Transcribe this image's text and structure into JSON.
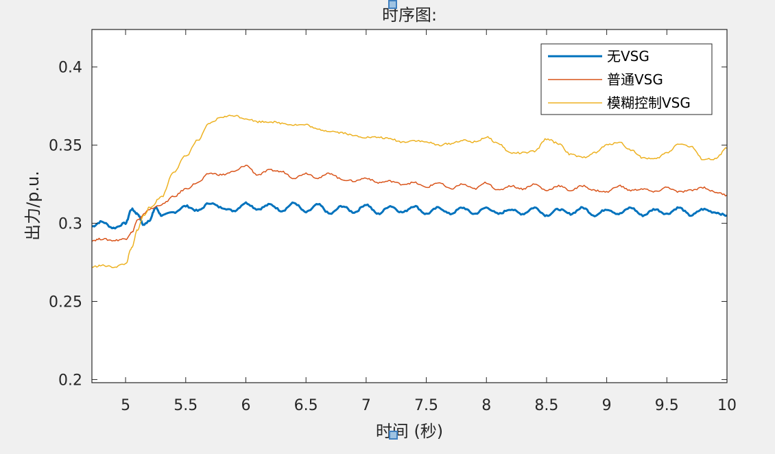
{
  "chart_data": {
    "type": "line",
    "title": "时序图:",
    "xlabel": "时间 (秒)",
    "ylabel": "出力/p.u.",
    "xlim": [
      4.72,
      10.0
    ],
    "ylim": [
      0.198,
      0.424
    ],
    "xticks": [
      5,
      5.5,
      6,
      6.5,
      7,
      7.5,
      8,
      8.5,
      9,
      9.5,
      10
    ],
    "xtick_labels": [
      "5",
      "5.5",
      "6",
      "6.5",
      "7",
      "7.5",
      "8",
      "8.5",
      "9",
      "9.5",
      "10"
    ],
    "yticks": [
      0.2,
      0.25,
      0.3,
      0.35,
      0.4
    ],
    "ytick_labels": [
      "0.2",
      "0.25",
      "0.3",
      "0.35",
      "0.4"
    ],
    "grid": false,
    "legend_position": "top-right",
    "series": [
      {
        "name": "无VSG",
        "color": "#0072bd",
        "line_width": 3,
        "points": [
          [
            4.72,
            0.298
          ],
          [
            4.8,
            0.301
          ],
          [
            4.9,
            0.297
          ],
          [
            5.0,
            0.3
          ],
          [
            5.05,
            0.309
          ],
          [
            5.1,
            0.306
          ],
          [
            5.15,
            0.299
          ],
          [
            5.2,
            0.302
          ],
          [
            5.25,
            0.31
          ],
          [
            5.3,
            0.305
          ],
          [
            5.4,
            0.307
          ],
          [
            5.5,
            0.311
          ],
          [
            5.6,
            0.308
          ],
          [
            5.7,
            0.313
          ],
          [
            5.8,
            0.31
          ],
          [
            5.9,
            0.308
          ],
          [
            6.0,
            0.313
          ],
          [
            6.1,
            0.309
          ],
          [
            6.2,
            0.312
          ],
          [
            6.3,
            0.308
          ],
          [
            6.4,
            0.313
          ],
          [
            6.5,
            0.307
          ],
          [
            6.6,
            0.312
          ],
          [
            6.7,
            0.306
          ],
          [
            6.8,
            0.311
          ],
          [
            6.9,
            0.307
          ],
          [
            7.0,
            0.312
          ],
          [
            7.1,
            0.306
          ],
          [
            7.2,
            0.311
          ],
          [
            7.3,
            0.307
          ],
          [
            7.4,
            0.311
          ],
          [
            7.5,
            0.306
          ],
          [
            7.6,
            0.31
          ],
          [
            7.7,
            0.306
          ],
          [
            7.8,
            0.31
          ],
          [
            7.9,
            0.306
          ],
          [
            8.0,
            0.31
          ],
          [
            8.1,
            0.306
          ],
          [
            8.2,
            0.309
          ],
          [
            8.3,
            0.306
          ],
          [
            8.4,
            0.31
          ],
          [
            8.5,
            0.305
          ],
          [
            8.6,
            0.309
          ],
          [
            8.7,
            0.306
          ],
          [
            8.8,
            0.31
          ],
          [
            8.9,
            0.305
          ],
          [
            9.0,
            0.309
          ],
          [
            9.1,
            0.306
          ],
          [
            9.2,
            0.31
          ],
          [
            9.3,
            0.305
          ],
          [
            9.4,
            0.309
          ],
          [
            9.5,
            0.306
          ],
          [
            9.6,
            0.31
          ],
          [
            9.7,
            0.305
          ],
          [
            9.8,
            0.309
          ],
          [
            9.9,
            0.307
          ],
          [
            10.0,
            0.305
          ]
        ]
      },
      {
        "name": "普通VSG",
        "color": "#d95319",
        "line_width": 1.5,
        "points": [
          [
            4.72,
            0.289
          ],
          [
            4.8,
            0.29
          ],
          [
            4.9,
            0.289
          ],
          [
            5.0,
            0.29
          ],
          [
            5.05,
            0.294
          ],
          [
            5.1,
            0.302
          ],
          [
            5.2,
            0.309
          ],
          [
            5.3,
            0.312
          ],
          [
            5.4,
            0.317
          ],
          [
            5.5,
            0.322
          ],
          [
            5.6,
            0.326
          ],
          [
            5.7,
            0.332
          ],
          [
            5.8,
            0.331
          ],
          [
            5.9,
            0.333
          ],
          [
            6.0,
            0.337
          ],
          [
            6.1,
            0.331
          ],
          [
            6.2,
            0.334
          ],
          [
            6.3,
            0.333
          ],
          [
            6.4,
            0.329
          ],
          [
            6.5,
            0.332
          ],
          [
            6.6,
            0.329
          ],
          [
            6.7,
            0.332
          ],
          [
            6.8,
            0.328
          ],
          [
            6.9,
            0.327
          ],
          [
            7.0,
            0.329
          ],
          [
            7.1,
            0.326
          ],
          [
            7.2,
            0.327
          ],
          [
            7.3,
            0.325
          ],
          [
            7.4,
            0.326
          ],
          [
            7.5,
            0.323
          ],
          [
            7.6,
            0.326
          ],
          [
            7.7,
            0.322
          ],
          [
            7.8,
            0.325
          ],
          [
            7.9,
            0.322
          ],
          [
            8.0,
            0.326
          ],
          [
            8.1,
            0.321
          ],
          [
            8.2,
            0.324
          ],
          [
            8.3,
            0.322
          ],
          [
            8.4,
            0.325
          ],
          [
            8.5,
            0.321
          ],
          [
            8.6,
            0.324
          ],
          [
            8.7,
            0.321
          ],
          [
            8.8,
            0.324
          ],
          [
            8.9,
            0.321
          ],
          [
            9.0,
            0.32
          ],
          [
            9.1,
            0.324
          ],
          [
            9.2,
            0.321
          ],
          [
            9.3,
            0.322
          ],
          [
            9.4,
            0.32
          ],
          [
            9.5,
            0.323
          ],
          [
            9.6,
            0.32
          ],
          [
            9.7,
            0.321
          ],
          [
            9.8,
            0.323
          ],
          [
            9.9,
            0.32
          ],
          [
            10.0,
            0.318
          ]
        ]
      },
      {
        "name": "模糊控制VSG",
        "color": "#edb120",
        "line_width": 1.5,
        "points": [
          [
            4.72,
            0.272
          ],
          [
            4.8,
            0.273
          ],
          [
            4.9,
            0.272
          ],
          [
            5.0,
            0.274
          ],
          [
            5.05,
            0.284
          ],
          [
            5.1,
            0.296
          ],
          [
            5.15,
            0.305
          ],
          [
            5.2,
            0.31
          ],
          [
            5.3,
            0.317
          ],
          [
            5.4,
            0.333
          ],
          [
            5.5,
            0.343
          ],
          [
            5.6,
            0.353
          ],
          [
            5.7,
            0.364
          ],
          [
            5.8,
            0.368
          ],
          [
            5.9,
            0.369
          ],
          [
            6.0,
            0.367
          ],
          [
            6.1,
            0.365
          ],
          [
            6.2,
            0.365
          ],
          [
            6.3,
            0.364
          ],
          [
            6.4,
            0.363
          ],
          [
            6.5,
            0.363
          ],
          [
            6.6,
            0.36
          ],
          [
            6.7,
            0.359
          ],
          [
            6.8,
            0.358
          ],
          [
            6.9,
            0.356
          ],
          [
            7.0,
            0.355
          ],
          [
            7.1,
            0.355
          ],
          [
            7.2,
            0.354
          ],
          [
            7.3,
            0.352
          ],
          [
            7.4,
            0.353
          ],
          [
            7.5,
            0.352
          ],
          [
            7.6,
            0.35
          ],
          [
            7.7,
            0.351
          ],
          [
            7.8,
            0.353
          ],
          [
            7.9,
            0.352
          ],
          [
            8.0,
            0.355
          ],
          [
            8.1,
            0.351
          ],
          [
            8.2,
            0.345
          ],
          [
            8.3,
            0.345
          ],
          [
            8.4,
            0.346
          ],
          [
            8.5,
            0.354
          ],
          [
            8.6,
            0.351
          ],
          [
            8.7,
            0.344
          ],
          [
            8.8,
            0.342
          ],
          [
            8.9,
            0.345
          ],
          [
            9.0,
            0.35
          ],
          [
            9.1,
            0.352
          ],
          [
            9.2,
            0.347
          ],
          [
            9.3,
            0.342
          ],
          [
            9.4,
            0.341
          ],
          [
            9.5,
            0.345
          ],
          [
            9.6,
            0.351
          ],
          [
            9.7,
            0.349
          ],
          [
            9.8,
            0.341
          ],
          [
            9.9,
            0.341
          ],
          [
            10.0,
            0.348
          ]
        ]
      }
    ]
  }
}
